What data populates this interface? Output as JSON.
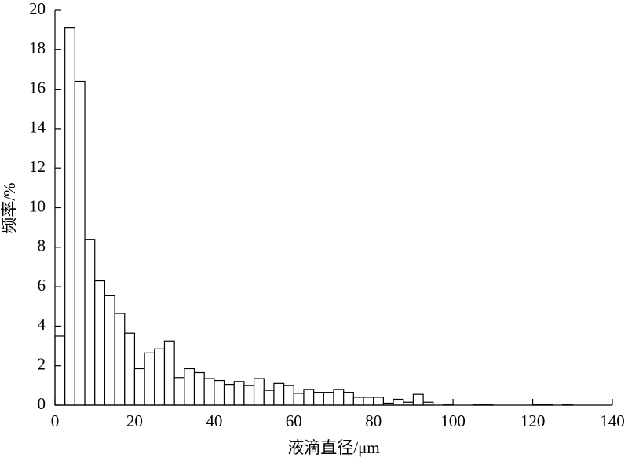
{
  "chart_data": {
    "type": "histogram",
    "x_label": "液滴直径/μm",
    "y_label": "频率/%",
    "bins": [
      0,
      2.5,
      5,
      7.5,
      10,
      12.5,
      15,
      17.5,
      20,
      22.5,
      25,
      27.5,
      30,
      32.5,
      35,
      37.5,
      40,
      42.5,
      45,
      47.5,
      50,
      52.5,
      55,
      57.5,
      60,
      62.5,
      65,
      67.5,
      70,
      72.5,
      75,
      77.5,
      80,
      82.5,
      85,
      87.5,
      90,
      92.5,
      95,
      97.5,
      100,
      102.5,
      105,
      107.5,
      110,
      112.5,
      115,
      117.5,
      120,
      122.5,
      125,
      127.5,
      130
    ],
    "values": [
      3.5,
      19.1,
      16.4,
      8.4,
      6.3,
      5.55,
      4.65,
      3.65,
      1.85,
      2.65,
      2.85,
      3.25,
      1.4,
      1.85,
      1.65,
      1.35,
      1.25,
      1.05,
      1.2,
      1.0,
      1.35,
      0.75,
      1.1,
      1.0,
      0.6,
      0.8,
      0.65,
      0.65,
      0.8,
      0.65,
      0.4,
      0.4,
      0.4,
      0.1,
      0.3,
      0.15,
      0.55,
      0.15,
      0,
      0.05,
      0,
      0,
      0.05,
      0.05,
      0,
      0,
      0,
      0,
      0.05,
      0.05,
      0,
      0.05
    ],
    "color": "#ffffff",
    "edgecolor": "#000000",
    "xlim": [
      0,
      140
    ],
    "xticks": [
      0,
      20,
      40,
      60,
      80,
      100,
      120,
      140
    ],
    "ylim": [
      0,
      20
    ],
    "yticks": [
      0,
      2,
      4,
      6,
      8,
      10,
      12,
      14,
      16,
      18,
      20
    ]
  }
}
